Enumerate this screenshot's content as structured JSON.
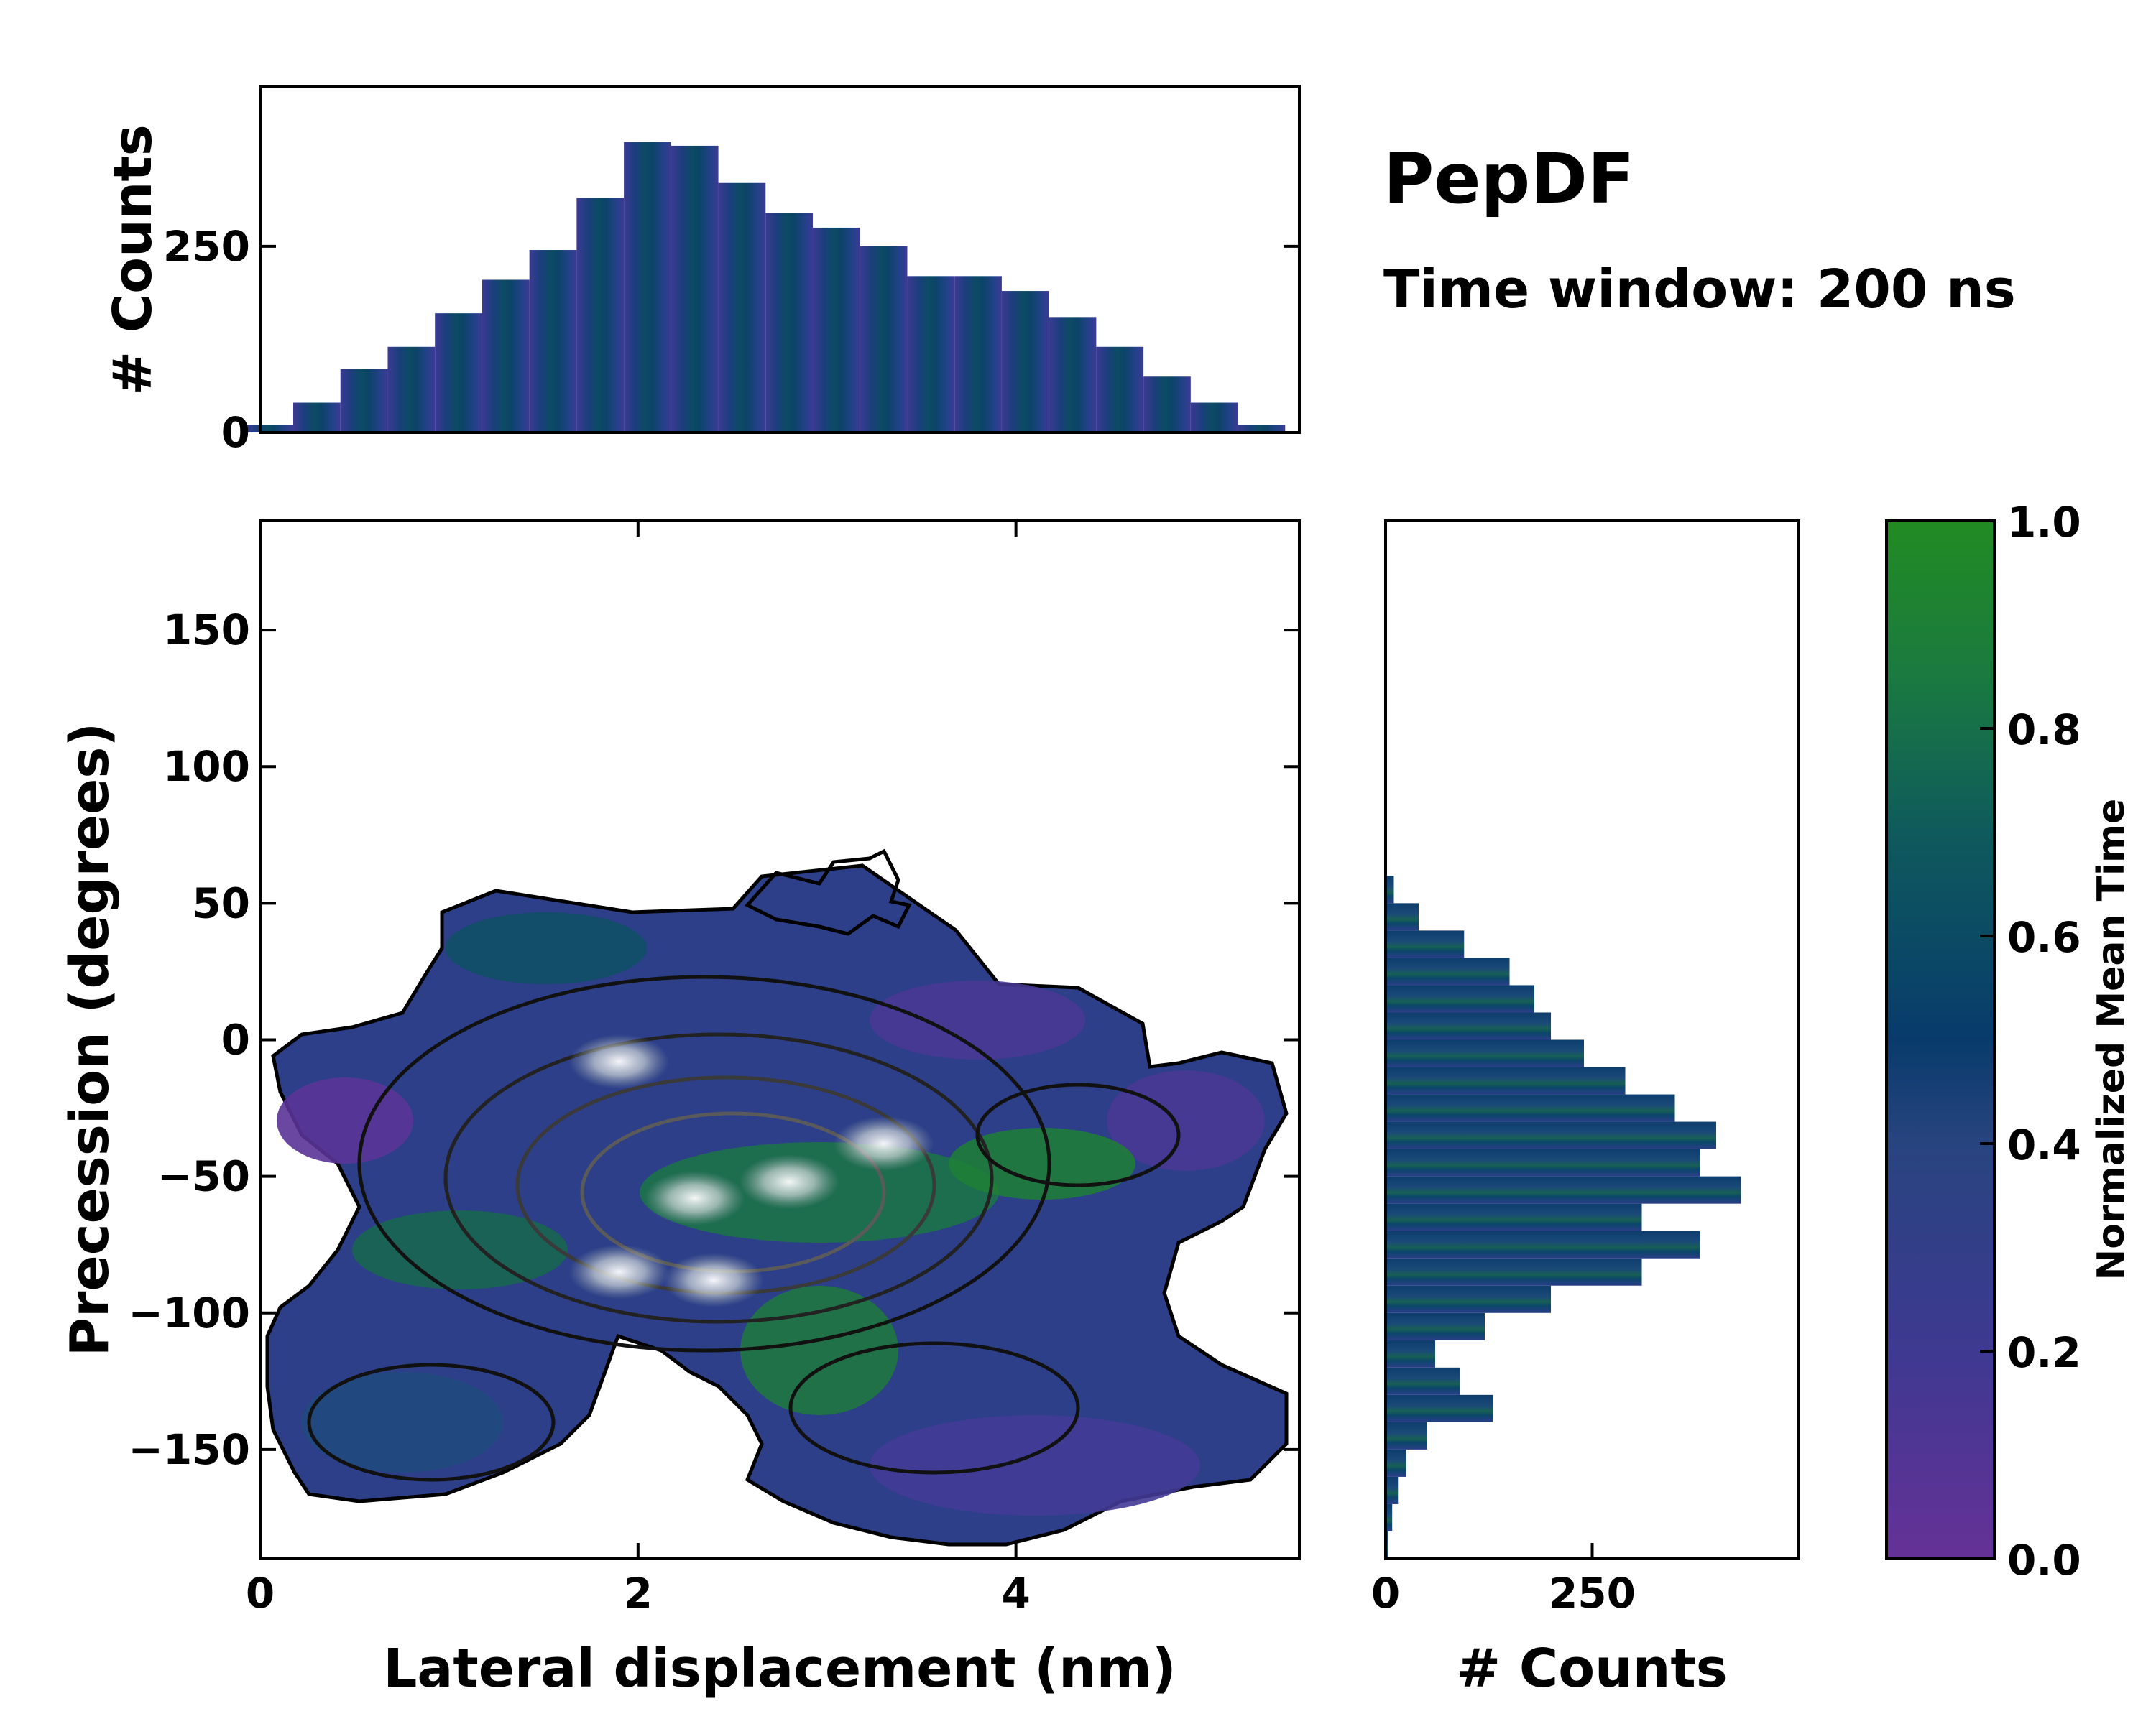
{
  "figure": {
    "title": "PepDF",
    "subtitle": "Time window: 200 ns"
  },
  "chart_data": [
    {
      "id": "joint",
      "type": "heatmap",
      "xlabel": "Lateral displacement (nm)",
      "ylabel": "Precession (degrees)",
      "xlim": [
        0,
        5.5
      ],
      "ylim": [
        -190,
        190
      ],
      "xticks": [
        0,
        2,
        4
      ],
      "xtick_labels": [
        "0",
        "2",
        "4"
      ],
      "yticks": [
        150,
        100,
        50,
        0,
        -50,
        -100,
        -150
      ],
      "ytick_labels": [
        "150",
        "100",
        "50",
        "0",
        "−50",
        "−100",
        "−150"
      ],
      "color_meaning": "Normalized Mean Time",
      "overlay": "density contours",
      "high_density_centers": [
        {
          "x": 1.9,
          "y": -8,
          "label": ""
        },
        {
          "x": 2.3,
          "y": -58,
          "label": ""
        },
        {
          "x": 2.8,
          "y": -52,
          "label": ""
        },
        {
          "x": 1.9,
          "y": -85,
          "label": ""
        },
        {
          "x": 2.4,
          "y": -88,
          "label": ""
        },
        {
          "x": 3.3,
          "y": -38,
          "label": ""
        }
      ]
    },
    {
      "id": "top_histogram",
      "type": "bar",
      "ylabel": "# Counts",
      "yticks": [
        0,
        250
      ],
      "ytick_labels": [
        "0",
        "250"
      ],
      "ylim": [
        0,
        465
      ],
      "x": [
        0.05,
        0.3,
        0.55,
        0.8,
        1.05,
        1.3,
        1.55,
        1.8,
        2.05,
        2.3,
        2.55,
        2.8,
        3.05,
        3.3,
        3.55,
        3.8,
        4.05,
        4.3,
        4.55,
        4.8,
        5.05,
        5.3
      ],
      "values": [
        10,
        40,
        85,
        115,
        160,
        205,
        245,
        315,
        390,
        385,
        335,
        295,
        275,
        250,
        210,
        210,
        190,
        155,
        115,
        75,
        40,
        10
      ]
    },
    {
      "id": "right_histogram",
      "type": "bar",
      "orientation": "horizontal",
      "xlabel": "# Counts",
      "xticks": [
        0,
        250
      ],
      "xtick_labels": [
        "0",
        "250"
      ],
      "xlim": [
        0,
        500
      ],
      "y": [
        55,
        45,
        35,
        25,
        15,
        5,
        -5,
        -15,
        -25,
        -35,
        -45,
        -55,
        -65,
        -75,
        -85,
        -95,
        -105,
        -115,
        -125,
        -135,
        -145,
        -155,
        -165,
        -175,
        -185
      ],
      "values": [
        10,
        40,
        95,
        150,
        180,
        200,
        240,
        290,
        350,
        400,
        380,
        430,
        310,
        380,
        310,
        200,
        120,
        60,
        90,
        130,
        50,
        25,
        15,
        8,
        3
      ]
    },
    {
      "id": "colorbar",
      "type": "colorbar",
      "label": "Normalized Mean Time",
      "range": [
        0.0,
        1.0
      ],
      "ticks": [
        0.0,
        0.2,
        0.4,
        0.6,
        0.8,
        1.0
      ],
      "tick_labels": [
        "0.0",
        "0.2",
        "0.4",
        "0.6",
        "0.8",
        "1.0"
      ],
      "colors": [
        "#653197",
        "#2f3f8f",
        "#083b6c",
        "#0f5a5c",
        "#1a7a40",
        "#228B22"
      ]
    }
  ]
}
